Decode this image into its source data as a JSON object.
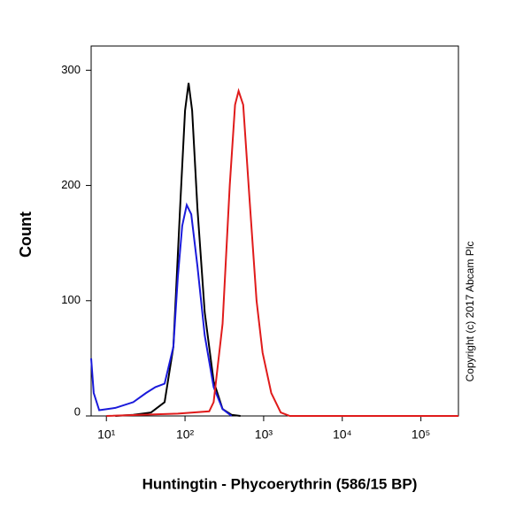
{
  "chart_data": {
    "type": "line",
    "x_label": "Huntingtin - Phycoerythrin (586/15 BP)",
    "y_label": "Count",
    "annotation": "Copyright (c) 2017 Abcam Plc",
    "xscale": "log",
    "xlim": [
      6.4,
      300000
    ],
    "ylim": [
      0,
      321
    ],
    "xticks": [
      {
        "value": 10,
        "label": "10¹"
      },
      {
        "value": 100,
        "label": "10²"
      },
      {
        "value": 1000,
        "label": "10³"
      },
      {
        "value": 10000,
        "label": "10⁴"
      },
      {
        "value": 100000,
        "label": "10⁵"
      }
    ],
    "yticks": [
      0,
      100,
      200,
      300
    ],
    "series": [
      {
        "color": "#000000",
        "x": [
          13,
          22,
          37,
          55,
          71,
          88,
          100,
          111,
          123,
          144,
          178,
          231,
          300,
          390,
          507
        ],
        "values": [
          0,
          1,
          3,
          12,
          60,
          190,
          265,
          289,
          265,
          180,
          90,
          30,
          6,
          1,
          0
        ]
      },
      {
        "color": "#1a1adb",
        "x": [
          6.4,
          6.9,
          8.1,
          13,
          22,
          32,
          42,
          55,
          71,
          81,
          92,
          105,
          120,
          144,
          178,
          231,
          300,
          390
        ],
        "values": [
          50,
          20,
          5,
          7,
          12,
          20,
          25,
          28,
          60,
          120,
          165,
          183,
          175,
          130,
          70,
          25,
          6,
          0
        ]
      },
      {
        "color": "#e01b1b",
        "x": [
          10,
          81,
          203,
          231,
          300,
          370,
          433,
          480,
          550,
          658,
          813,
          970,
          1250,
          1650,
          2150,
          300000
        ],
        "values": [
          0,
          2,
          4,
          12,
          80,
          200,
          270,
          282,
          270,
          190,
          100,
          55,
          20,
          3,
          0,
          0
        ]
      }
    ]
  }
}
